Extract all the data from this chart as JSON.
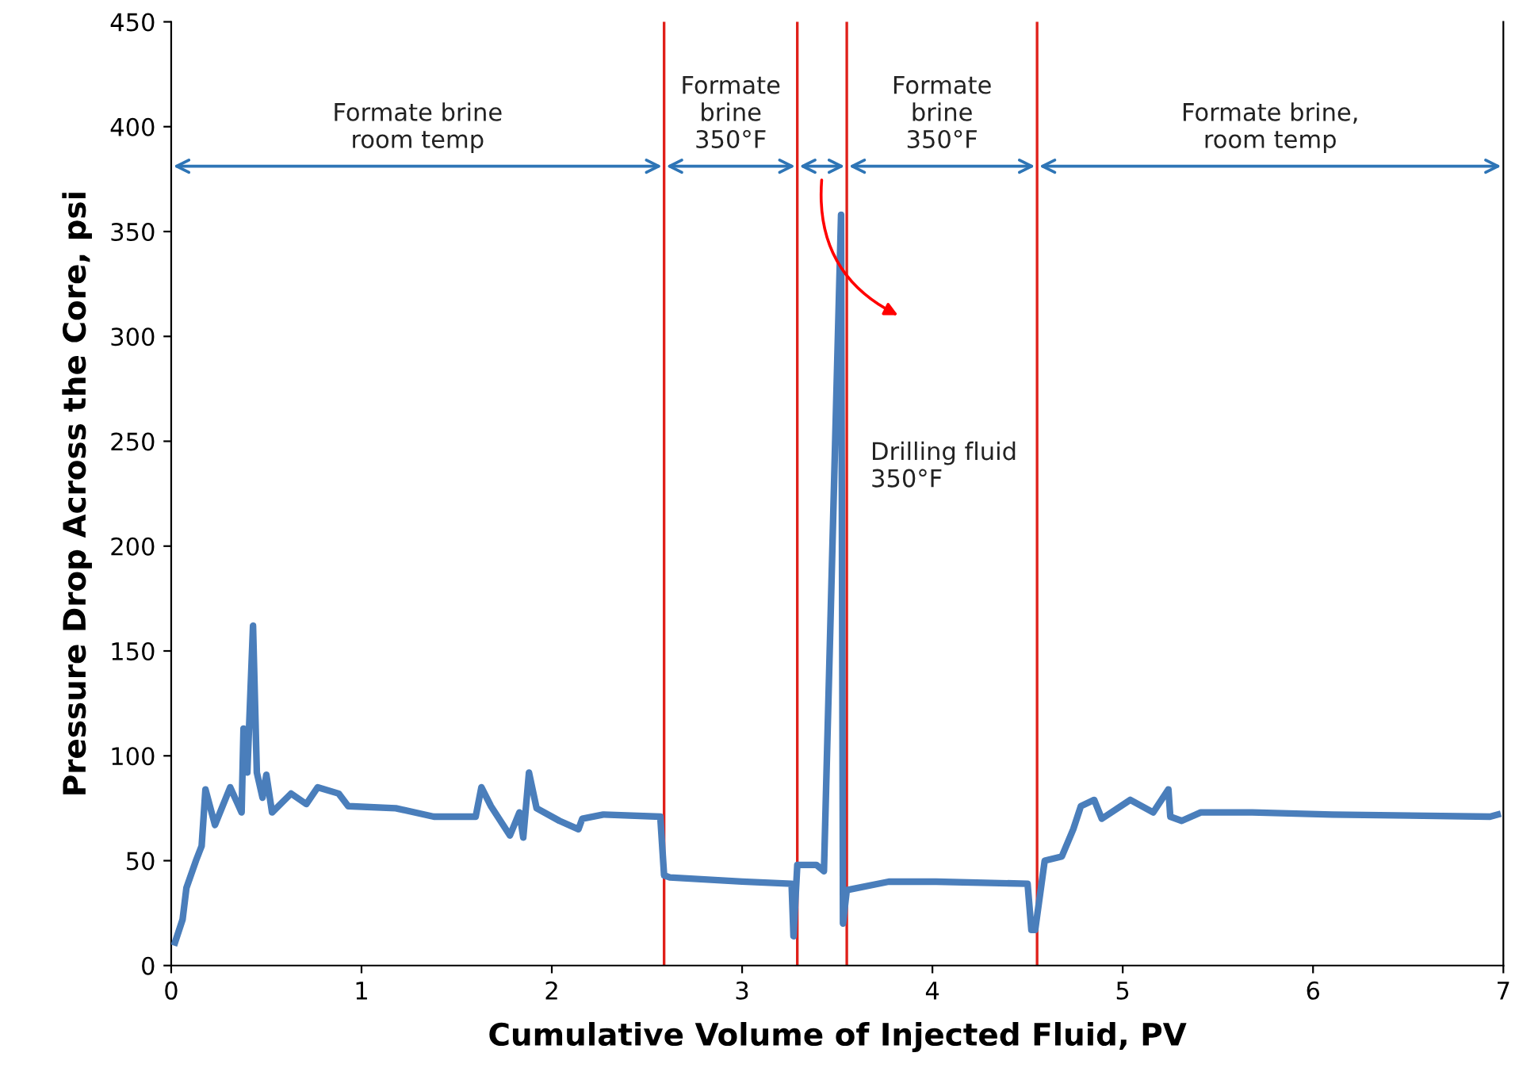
{
  "chart_data": {
    "type": "line",
    "xlabel": "Cumulative Volume of Injected Fluid, PV",
    "ylabel": "Pressure Drop Across the Core, psi",
    "xlim": [
      0,
      7
    ],
    "xticks": [
      0,
      1,
      2,
      3,
      4,
      5,
      6,
      7
    ],
    "ylim": [
      0,
      450
    ],
    "yticks": [
      0,
      50,
      100,
      150,
      200,
      250,
      300,
      350,
      400,
      450
    ],
    "grid": false,
    "legend": false,
    "marker": "none",
    "line_style": "solid",
    "series": [
      {
        "color": "#4a7ebb",
        "x": [
          0.02,
          0.06,
          0.08,
          0.13,
          0.16,
          0.18,
          0.23,
          0.31,
          0.37,
          0.38,
          0.4,
          0.43,
          0.45,
          0.48,
          0.5,
          0.53,
          0.63,
          0.71,
          0.77,
          0.88,
          0.93,
          1.18,
          1.38,
          1.6,
          1.63,
          1.68,
          1.78,
          1.83,
          1.85,
          1.88,
          1.92,
          2.04,
          2.14,
          2.16,
          2.27,
          2.57,
          2.59,
          2.62,
          3.0,
          3.26,
          3.27,
          3.29,
          3.39,
          3.43,
          3.52,
          3.53,
          3.55,
          3.77,
          4.02,
          4.5,
          4.52,
          4.54,
          4.59,
          4.68,
          4.74,
          4.78,
          4.85,
          4.89,
          5.04,
          5.16,
          5.24,
          5.25,
          5.31,
          5.41,
          5.68,
          6.1,
          6.93,
          6.97
        ],
        "values": [
          11,
          22,
          37,
          50,
          57,
          84,
          67,
          85,
          73,
          113,
          92,
          162,
          92,
          80,
          91,
          73,
          82,
          77,
          85,
          82,
          76,
          75,
          71,
          71,
          85,
          76,
          62,
          73,
          61,
          92,
          75,
          69,
          65,
          70,
          72,
          71,
          43,
          42,
          40,
          39,
          14,
          48,
          48,
          45,
          358,
          20,
          36,
          40,
          40,
          39,
          17,
          17,
          50,
          52,
          65,
          76,
          79,
          70,
          79,
          73,
          84,
          71,
          69,
          73,
          73,
          72,
          71,
          72
        ]
      }
    ],
    "ref_lines": [
      {
        "axis": "x",
        "value": 2.59,
        "color": "#e0201a"
      },
      {
        "axis": "x",
        "value": 3.29,
        "color": "#e0201a"
      },
      {
        "axis": "x",
        "value": 3.55,
        "color": "#e0201a"
      },
      {
        "axis": "x",
        "value": 4.55,
        "color": "#e0201a"
      }
    ],
    "annotations": [
      "Formate brine\nroom temp",
      "Formate\nbrine\n350°F",
      "Drilling fluid\n350°F",
      "Formate\nbrine\n350°F",
      "Formate brine,\nroom temp"
    ]
  }
}
